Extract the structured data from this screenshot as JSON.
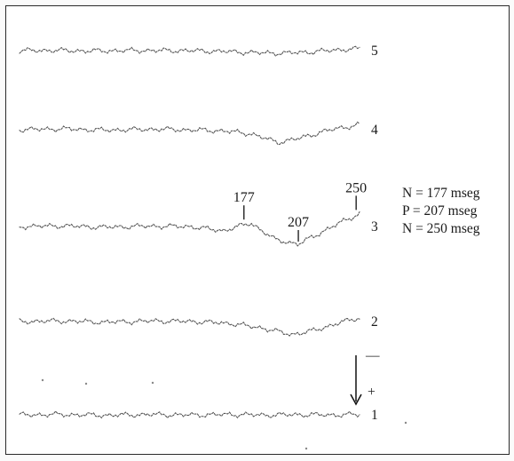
{
  "chart_data": {
    "type": "line",
    "title": "",
    "xlabel": "",
    "ylabel": "",
    "series": [
      {
        "label": "5",
        "shape": [
          [
            0,
            0
          ],
          [
            0.1,
            0.05
          ],
          [
            0.2,
            -0.05
          ],
          [
            0.35,
            0.03
          ],
          [
            0.5,
            0
          ],
          [
            0.62,
            -0.15
          ],
          [
            0.7,
            -0.35
          ],
          [
            0.78,
            -0.4
          ],
          [
            0.86,
            -0.2
          ],
          [
            0.94,
            0.15
          ],
          [
            1,
            0.3
          ]
        ],
        "amp": 7
      },
      {
        "label": "4",
        "shape": [
          [
            0,
            0
          ],
          [
            0.12,
            0.08
          ],
          [
            0.25,
            -0.04
          ],
          [
            0.4,
            0.05
          ],
          [
            0.5,
            -0.02
          ],
          [
            0.6,
            -0.1
          ],
          [
            0.68,
            -0.35
          ],
          [
            0.76,
            -1.1
          ],
          [
            0.83,
            -0.7
          ],
          [
            0.9,
            -0.1
          ],
          [
            1,
            0.45
          ]
        ],
        "amp": 13
      },
      {
        "label": "3",
        "shape": [
          [
            0,
            0
          ],
          [
            0.12,
            0.05
          ],
          [
            0.25,
            -0.05
          ],
          [
            0.38,
            0.03
          ],
          [
            0.5,
            0
          ],
          [
            0.6,
            -0.3
          ],
          [
            0.68,
            0.25
          ],
          [
            0.75,
            -0.9
          ],
          [
            0.82,
            -1.25
          ],
          [
            0.88,
            -0.5
          ],
          [
            0.95,
            0.35
          ],
          [
            1,
            0.9
          ]
        ],
        "amp": 16
      },
      {
        "label": "2",
        "shape": [
          [
            0,
            0
          ],
          [
            0.12,
            0.05
          ],
          [
            0.25,
            -0.05
          ],
          [
            0.4,
            0.05
          ],
          [
            0.52,
            0
          ],
          [
            0.62,
            -0.15
          ],
          [
            0.72,
            -0.55
          ],
          [
            0.8,
            -1.05
          ],
          [
            0.87,
            -0.7
          ],
          [
            0.94,
            -0.1
          ],
          [
            1,
            0.3
          ]
        ],
        "amp": 14
      },
      {
        "label": "1",
        "shape": [
          [
            0,
            0
          ],
          [
            0.12,
            0.05
          ],
          [
            0.25,
            -0.08
          ],
          [
            0.38,
            0.05
          ],
          [
            0.5,
            -0.03
          ],
          [
            0.62,
            0.06
          ],
          [
            0.72,
            -0.04
          ],
          [
            0.82,
            0.03
          ],
          [
            0.92,
            -0.02
          ],
          [
            1,
            0.05
          ]
        ],
        "amp": 7
      }
    ],
    "peak_labels": [
      {
        "label": "177",
        "trace": "3",
        "x": 0.66
      },
      {
        "label": "207",
        "trace": "3",
        "x": 0.82
      },
      {
        "label": "250",
        "trace": "3",
        "x": 0.99
      }
    ],
    "legend": [
      "N  =  177  mseg",
      "P  =  207  mseg",
      "N  =  250  mseg"
    ],
    "polarity": {
      "negative": "—",
      "positive": "+"
    },
    "grid": false
  }
}
